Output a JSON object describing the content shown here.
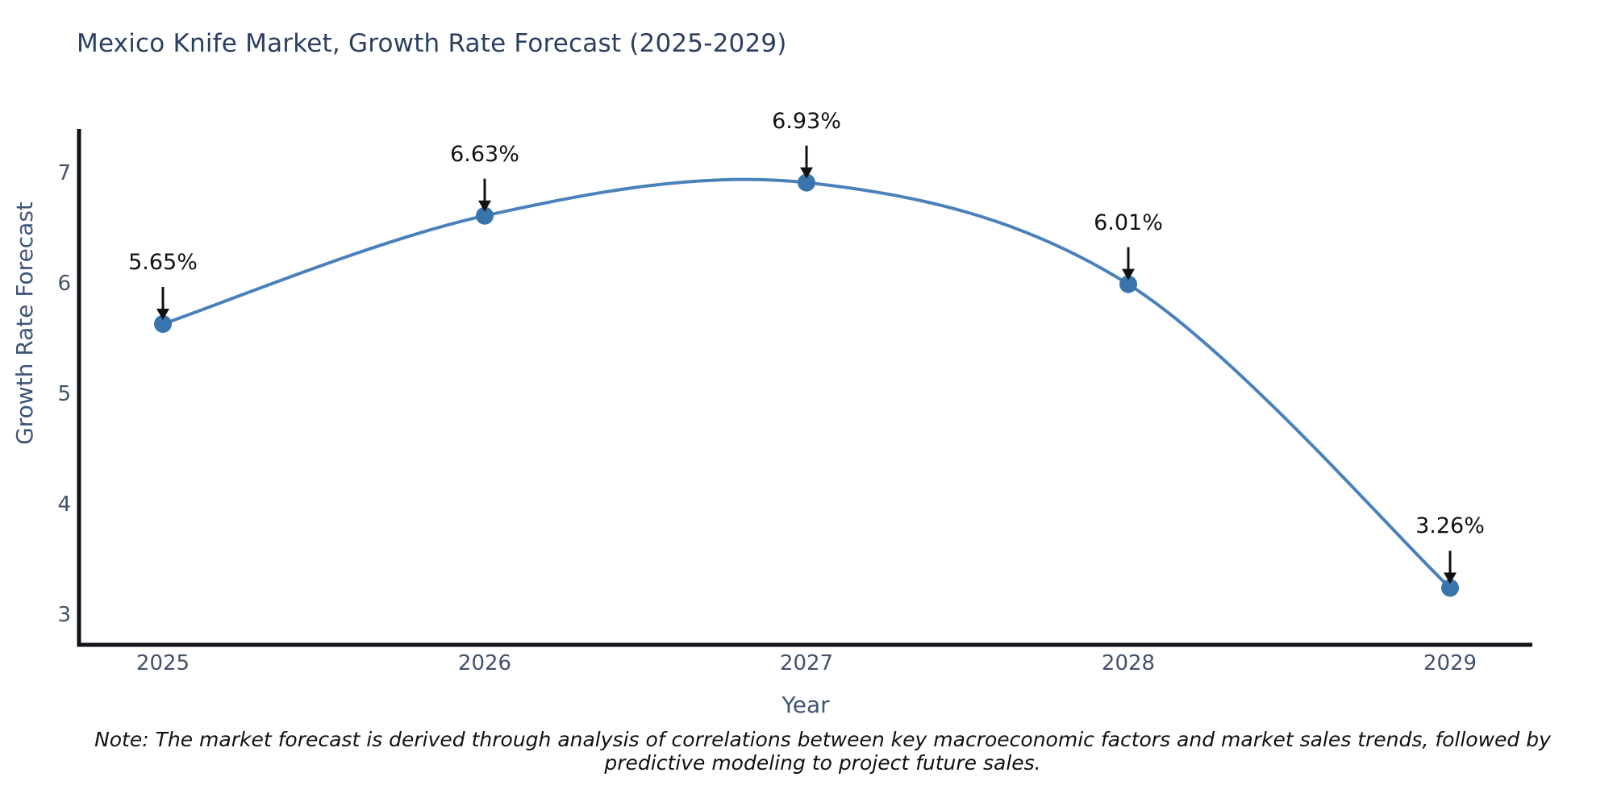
{
  "chart_data": {
    "type": "line",
    "title": "Mexico Knife Market, Growth Rate Forecast (2025-2029)",
    "xlabel": "Year",
    "ylabel": "Growth Rate Forecast",
    "x": [
      2025,
      2026,
      2027,
      2028,
      2029
    ],
    "y": [
      5.65,
      6.63,
      6.93,
      6.01,
      3.26
    ],
    "point_labels": [
      "5.65%",
      "6.63%",
      "6.93%",
      "6.01%",
      "3.26%"
    ],
    "xticks": [
      "2025",
      "2026",
      "2027",
      "2028",
      "2029"
    ],
    "yticks": [
      3,
      4,
      5,
      6,
      7
    ],
    "ylim": [
      2.74,
      7.42
    ],
    "xlim": [
      2024.74,
      2029.26
    ],
    "grid": false,
    "legend_position": "none",
    "line_color": "#4a81ba",
    "marker_color": "#3a74ad",
    "axis_color": "#101318",
    "annotation_color": "#111111"
  },
  "note": "Note: The market forecast is derived through analysis of correlations between key macroeconomic factors and market sales trends, followed by predictive modeling to project future sales."
}
